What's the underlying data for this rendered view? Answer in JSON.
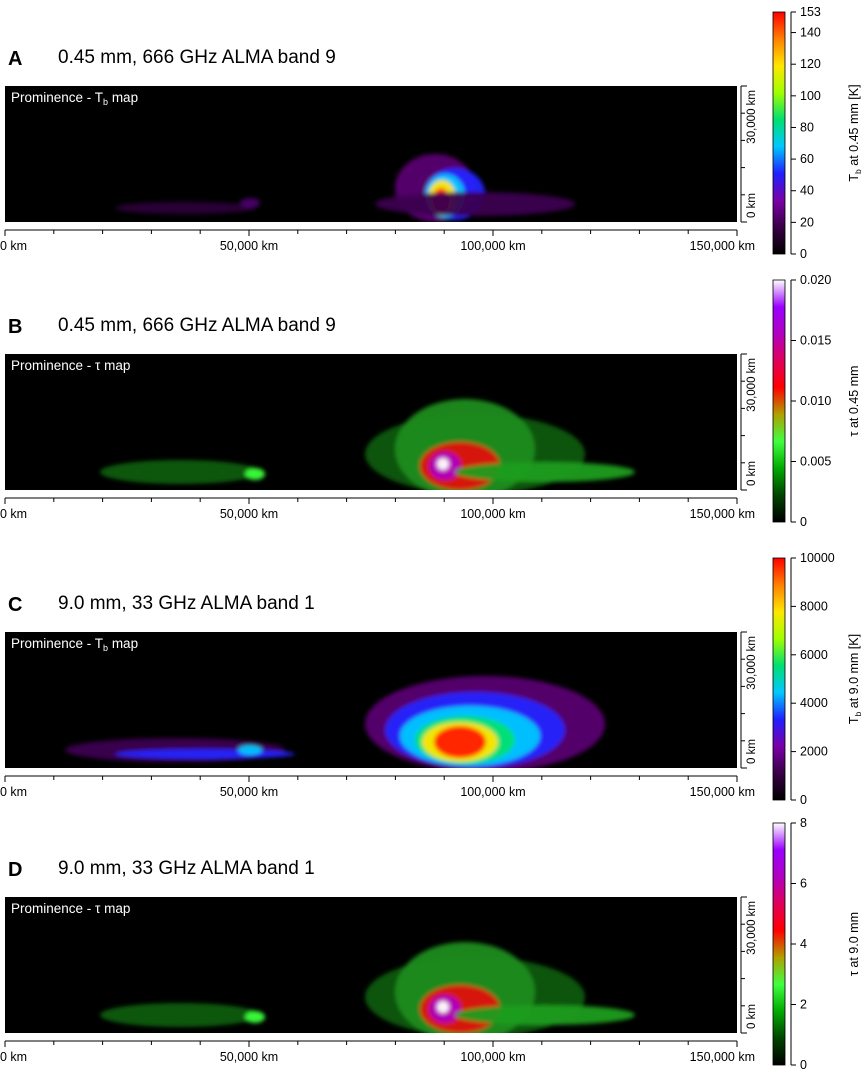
{
  "chart_data": [
    {
      "type": "heatmap",
      "panel_letter": "A",
      "title": "0.45 mm, 666 GHz ALMA band 9",
      "inset_label": "Prominence - T_b map",
      "x_ticks": [
        "0 km",
        "50,000 km",
        "100,000 km",
        "150,000 km"
      ],
      "y_ticks": [
        "0 km",
        "30,000 km"
      ],
      "colorbar_label": "T_b at 0.45 mm [K]",
      "colorbar_ticks": [
        "0",
        "20",
        "40",
        "60",
        "80",
        "100",
        "120",
        "140",
        "153"
      ],
      "colorbar_tick_values": [
        0,
        20,
        40,
        60,
        80,
        100,
        120,
        140,
        153
      ],
      "colorbar_range": [
        0,
        153
      ],
      "colormap": "black-purple-blue-cyan-green-yellow-red",
      "colorbar_stops": [
        "#000000",
        "#3a0046",
        "#7a00a8",
        "#2020ff",
        "#00c8ff",
        "#00e070",
        "#a0ff00",
        "#ffe600",
        "#ff8000",
        "#ff0000"
      ],
      "x_range_km": [
        0,
        150000
      ],
      "y_range_km": [
        0,
        30000
      ]
    },
    {
      "type": "heatmap",
      "panel_letter": "B",
      "title": "0.45 mm, 666 GHz ALMA band 9",
      "inset_label": "Prominence - τ map",
      "x_ticks": [
        "0 km",
        "50,000 km",
        "100,000 km",
        "150,000 km"
      ],
      "y_ticks": [
        "0 km",
        "30,000 km"
      ],
      "colorbar_label": "τ at 0.45 mm",
      "colorbar_ticks": [
        "0",
        "0.005",
        "0.010",
        "0.015",
        "0.020"
      ],
      "colorbar_tick_values": [
        0,
        0.005,
        0.01,
        0.015,
        0.02
      ],
      "colorbar_range": [
        0,
        0.02
      ],
      "colormap": "black-green-red-magenta-white",
      "colorbar_stops": [
        "#000000",
        "#004400",
        "#00aa00",
        "#40ff40",
        "#b0a000",
        "#ff0000",
        "#e0005a",
        "#b000c0",
        "#9a00ff",
        "#ffffff"
      ],
      "x_range_km": [
        0,
        150000
      ],
      "y_range_km": [
        0,
        30000
      ]
    },
    {
      "type": "heatmap",
      "panel_letter": "C",
      "title": "9.0 mm, 33 GHz ALMA band 1",
      "inset_label": "Prominence - T_b map",
      "x_ticks": [
        "0 km",
        "50,000 km",
        "100,000 km",
        "150,000 km"
      ],
      "y_ticks": [
        "0 km",
        "30,000 km"
      ],
      "colorbar_label": "T_b at 9.0 mm [K]",
      "colorbar_ticks": [
        "0",
        "2000",
        "4000",
        "6000",
        "8000",
        "10000"
      ],
      "colorbar_tick_values": [
        0,
        2000,
        4000,
        6000,
        8000,
        10000
      ],
      "colorbar_range": [
        0,
        10000
      ],
      "colormap": "black-purple-blue-cyan-green-yellow-red",
      "colorbar_stops": [
        "#000000",
        "#3a0046",
        "#7a00a8",
        "#2020ff",
        "#00c8ff",
        "#00e070",
        "#a0ff00",
        "#ffe600",
        "#ff8000",
        "#ff0000"
      ],
      "x_range_km": [
        0,
        150000
      ],
      "y_range_km": [
        0,
        30000
      ]
    },
    {
      "type": "heatmap",
      "panel_letter": "D",
      "title": "9.0 mm, 33 GHz ALMA band 1",
      "inset_label": "Prominence - τ map",
      "x_ticks": [
        "0 km",
        "50,000 km",
        "100,000 km",
        "150,000 km"
      ],
      "y_ticks": [
        "0 km",
        "30,000 km"
      ],
      "colorbar_label": "τ at 9.0 mm",
      "colorbar_ticks": [
        "0",
        "2",
        "4",
        "6",
        "8"
      ],
      "colorbar_tick_values": [
        0,
        2,
        4,
        6,
        8
      ],
      "colorbar_range": [
        0,
        8
      ],
      "colormap": "black-green-red-magenta-white",
      "colorbar_stops": [
        "#000000",
        "#004400",
        "#00aa00",
        "#40ff40",
        "#b0a000",
        "#ff0000",
        "#e0005a",
        "#b000c0",
        "#9a00ff",
        "#ffffff"
      ],
      "x_range_km": [
        0,
        150000
      ],
      "y_range_km": [
        0,
        30000
      ]
    }
  ]
}
